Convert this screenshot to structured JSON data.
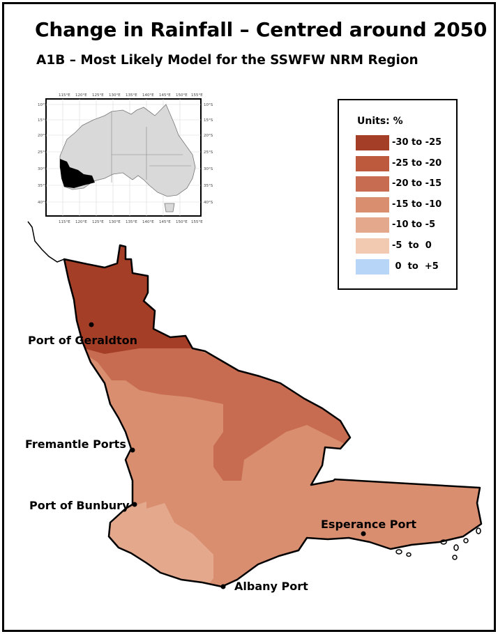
{
  "title": "Change in Rainfall – Centred around 2050",
  "subtitle": "A1B – Most Likely Model for the SSWFW NRM Region",
  "legend": {
    "title": "Units: %",
    "items": [
      {
        "label": "-30 to -25",
        "color": "#a43e26"
      },
      {
        "label": "-25 to -20",
        "color": "#bd5a3e"
      },
      {
        "label": "-20 to -15",
        "color": "#c76c50"
      },
      {
        "label": "-15 to -10",
        "color": "#d98e70"
      },
      {
        "label": "-10 to -5",
        "color": "#e4a88c"
      },
      {
        "label": "-5  to  0",
        "color": "#f2c9b1"
      },
      {
        "label": " 0  to  +5",
        "color": "#b7d6f7"
      }
    ]
  },
  "inset": {
    "lon_ticks": [
      "115°E",
      "120°E",
      "125°E",
      "130°E",
      "135°E",
      "140°E",
      "145°E",
      "150°E",
      "155°E"
    ],
    "lat_ticks": [
      "10°S",
      "15°S",
      "20°S",
      "25°S",
      "30°S",
      "35°S",
      "40°S"
    ]
  },
  "ports": [
    {
      "name": "Port of Geraldton"
    },
    {
      "name": "Fremantle Ports"
    },
    {
      "name": "Port of Bunbury"
    },
    {
      "name": "Esperance Port"
    },
    {
      "name": "Albany Port"
    }
  ]
}
